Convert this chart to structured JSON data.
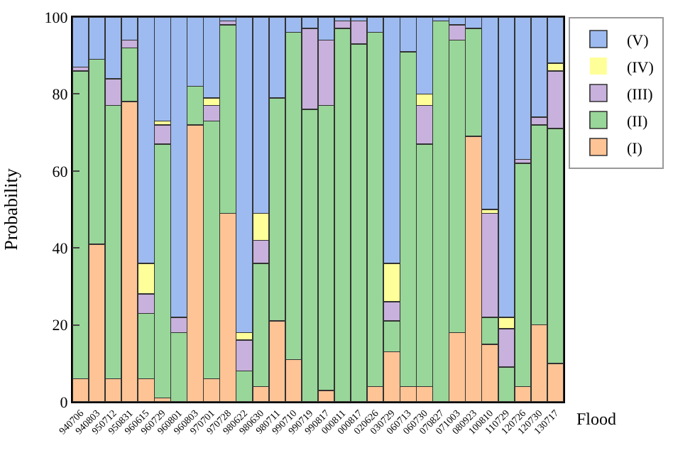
{
  "chart_data": {
    "type": "bar",
    "stacked": true,
    "xlabel": "Flood",
    "ylabel": "Probability",
    "categories": [
      "940706",
      "940803",
      "950712",
      "950831",
      "960615",
      "960729",
      "960801",
      "960803",
      "970701",
      "970728",
      "980622",
      "980630",
      "980711",
      "990710",
      "990719",
      "990817",
      "000811",
      "000817",
      "020626",
      "030729",
      "060713",
      "060730",
      "070827",
      "071003",
      "080923",
      "100810",
      "110729",
      "120726",
      "120730",
      "130717"
    ],
    "series": [
      {
        "name": "(I)",
        "color": "#ffc495",
        "values": [
          6,
          41,
          6,
          78,
          6,
          1,
          0,
          72,
          6,
          49,
          0,
          4,
          21,
          11,
          0,
          3,
          0,
          0,
          4,
          13,
          4,
          4,
          0,
          18,
          69,
          15,
          0,
          4,
          20,
          10
        ]
      },
      {
        "name": "(II)",
        "color": "#99d699",
        "values": [
          80,
          48,
          71,
          14,
          17,
          66,
          18,
          10,
          67,
          49,
          8,
          32,
          58,
          85,
          76,
          74,
          97,
          93,
          92,
          8,
          87,
          63,
          99,
          76,
          28,
          7,
          9,
          58,
          52,
          61
        ]
      },
      {
        "name": "(III)",
        "color": "#c8b1dc",
        "values": [
          1,
          0,
          7,
          2,
          5,
          5,
          4,
          0,
          4,
          1,
          8,
          6,
          0,
          0,
          21,
          17,
          2,
          6,
          0,
          5,
          0,
          10,
          0,
          4,
          0,
          27,
          10,
          1,
          2,
          15
        ]
      },
      {
        "name": "(IV)",
        "color": "#ffff99",
        "values": [
          0,
          0,
          0,
          0,
          8,
          1,
          0,
          0,
          2,
          0,
          2,
          7,
          0,
          0,
          0,
          0,
          0,
          0,
          0,
          10,
          0,
          3,
          0,
          0,
          0,
          1,
          3,
          0,
          0,
          2
        ]
      },
      {
        "name": "(V)",
        "color": "#9dbbf0",
        "values": [
          13,
          11,
          16,
          6,
          64,
          27,
          78,
          18,
          21,
          1,
          82,
          51,
          21,
          4,
          3,
          6,
          1,
          1,
          4,
          64,
          9,
          20,
          1,
          2,
          3,
          50,
          78,
          37,
          26,
          12
        ]
      }
    ],
    "ylim": [
      0,
      100
    ],
    "yticks": [
      0,
      20,
      40,
      60,
      80,
      100
    ],
    "legend": "top right"
  }
}
